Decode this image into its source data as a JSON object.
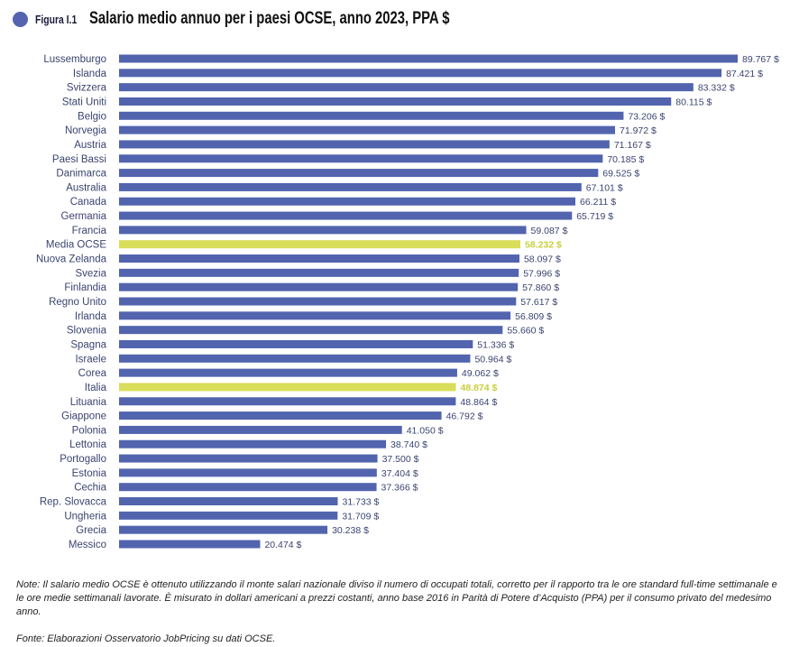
{
  "figure_label": "Figura I.1",
  "chart_data": {
    "type": "bar",
    "orientation": "horizontal",
    "title": "Salario medio annuo per i paesi OCSE, anno 2023, PPA $",
    "value_suffix": " $",
    "colors": {
      "default": "#5264ae",
      "highlight": "#d8de5a"
    },
    "highlighted": [
      "Media OCSE",
      "Italia"
    ],
    "categories": [
      "Lussemburgo",
      "Islanda",
      "Svizzera",
      "Stati Uniti",
      "Belgio",
      "Norvegia",
      "Austria",
      "Paesi Bassi",
      "Danimarca",
      "Australia",
      "Canada",
      "Germania",
      "Francia",
      "Media OCSE",
      "Nuova Zelanda",
      "Svezia",
      "Finlandia",
      "Regno Unito",
      "Irlanda",
      "Slovenia",
      "Spagna",
      "Israele",
      "Corea",
      "Italia",
      "Lituania",
      "Giappone",
      "Polonia",
      "Lettonia",
      "Portogallo",
      "Estonia",
      "Cechia",
      "Rep. Slovacca",
      "Ungheria",
      "Grecia",
      "Messico"
    ],
    "values": [
      89767,
      87421,
      83332,
      80115,
      73206,
      71972,
      71167,
      70185,
      69525,
      67101,
      66211,
      65719,
      59087,
      58232,
      58097,
      57996,
      57860,
      57617,
      56809,
      55660,
      51336,
      50964,
      49062,
      48874,
      48864,
      46792,
      41050,
      38740,
      37500,
      37404,
      37366,
      31733,
      31709,
      30238,
      20474
    ],
    "labels": [
      "89.767 $",
      "87.421 $",
      "83.332 $",
      "80.115 $",
      "73.206 $",
      "71.972 $",
      "71.167 $",
      "70.185 $",
      "69.525 $",
      "67.101 $",
      "66.211 $",
      "65.719 $",
      "59.087 $",
      "58.232 $",
      "58.097 $",
      "57.996 $",
      "57.860 $",
      "57.617 $",
      "56.809 $",
      "55.660 $",
      "51.336 $",
      "50.964 $",
      "49.062 $",
      "48.874 $",
      "48.864 $",
      "46.792 $",
      "41.050 $",
      "38.740 $",
      "37.500 $",
      "37.404 $",
      "37.366 $",
      "31.733 $",
      "31.709 $",
      "30.238 $",
      "20.474 $"
    ]
  },
  "note": "Note: Il salario medio OCSE è ottenuto utilizzando il monte salari nazionale diviso il numero di occupati totali, corretto per il rapporto tra le ore standard full-time settimanale e le ore medie settimanali lavorate. È misurato in dollari americani a prezzi costanti, anno base 2016 in Parità di Potere d’Acquisto (PPA) per il consumo privato del medesimo anno.",
  "source": "Fonte: Elaborazioni Osservatorio JobPricing su dati OCSE."
}
